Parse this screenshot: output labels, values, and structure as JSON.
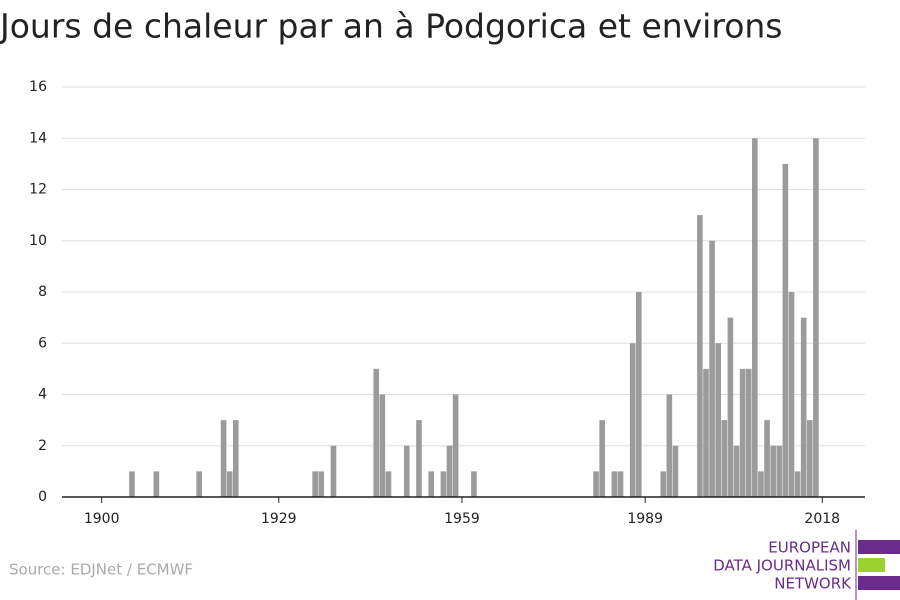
{
  "chart_data": {
    "type": "bar",
    "title": "Jours de chaleur par an à Podgorica et environs",
    "source": "Source: EDJNet / ECMWF",
    "logo": [
      "EUROPEAN",
      "DATA JOURNALISM",
      "NETWORK"
    ],
    "x": [
      1905,
      1909,
      1916,
      1920,
      1921,
      1922,
      1935,
      1936,
      1938,
      1945,
      1946,
      1947,
      1950,
      1952,
      1954,
      1956,
      1957,
      1958,
      1961,
      1981,
      1982,
      1984,
      1985,
      1987,
      1988,
      1992,
      1993,
      1994,
      1998,
      1999,
      2000,
      2001,
      2002,
      2003,
      2004,
      2005,
      2006,
      2007,
      2008,
      2009,
      2010,
      2011,
      2012,
      2013,
      2014,
      2015,
      2016,
      2017
    ],
    "values": [
      1,
      1,
      1,
      3,
      1,
      3,
      1,
      1,
      2,
      5,
      4,
      1,
      2,
      3,
      1,
      1,
      2,
      4,
      1,
      1,
      3,
      1,
      1,
      6,
      8,
      1,
      4,
      2,
      11,
      5,
      10,
      6,
      3,
      7,
      2,
      5,
      5,
      14,
      1,
      3,
      2,
      2,
      13,
      8,
      1,
      7,
      3,
      14
    ],
    "color": "#9b9b9b",
    "xlim": [
      1893.5,
      2025
    ],
    "xticks": [
      1900,
      1929,
      1959,
      1989,
      2018
    ],
    "ylim": [
      0,
      16
    ],
    "yticks": [
      0,
      2,
      4,
      6,
      8,
      10,
      12,
      14,
      16
    ],
    "grid": true
  }
}
